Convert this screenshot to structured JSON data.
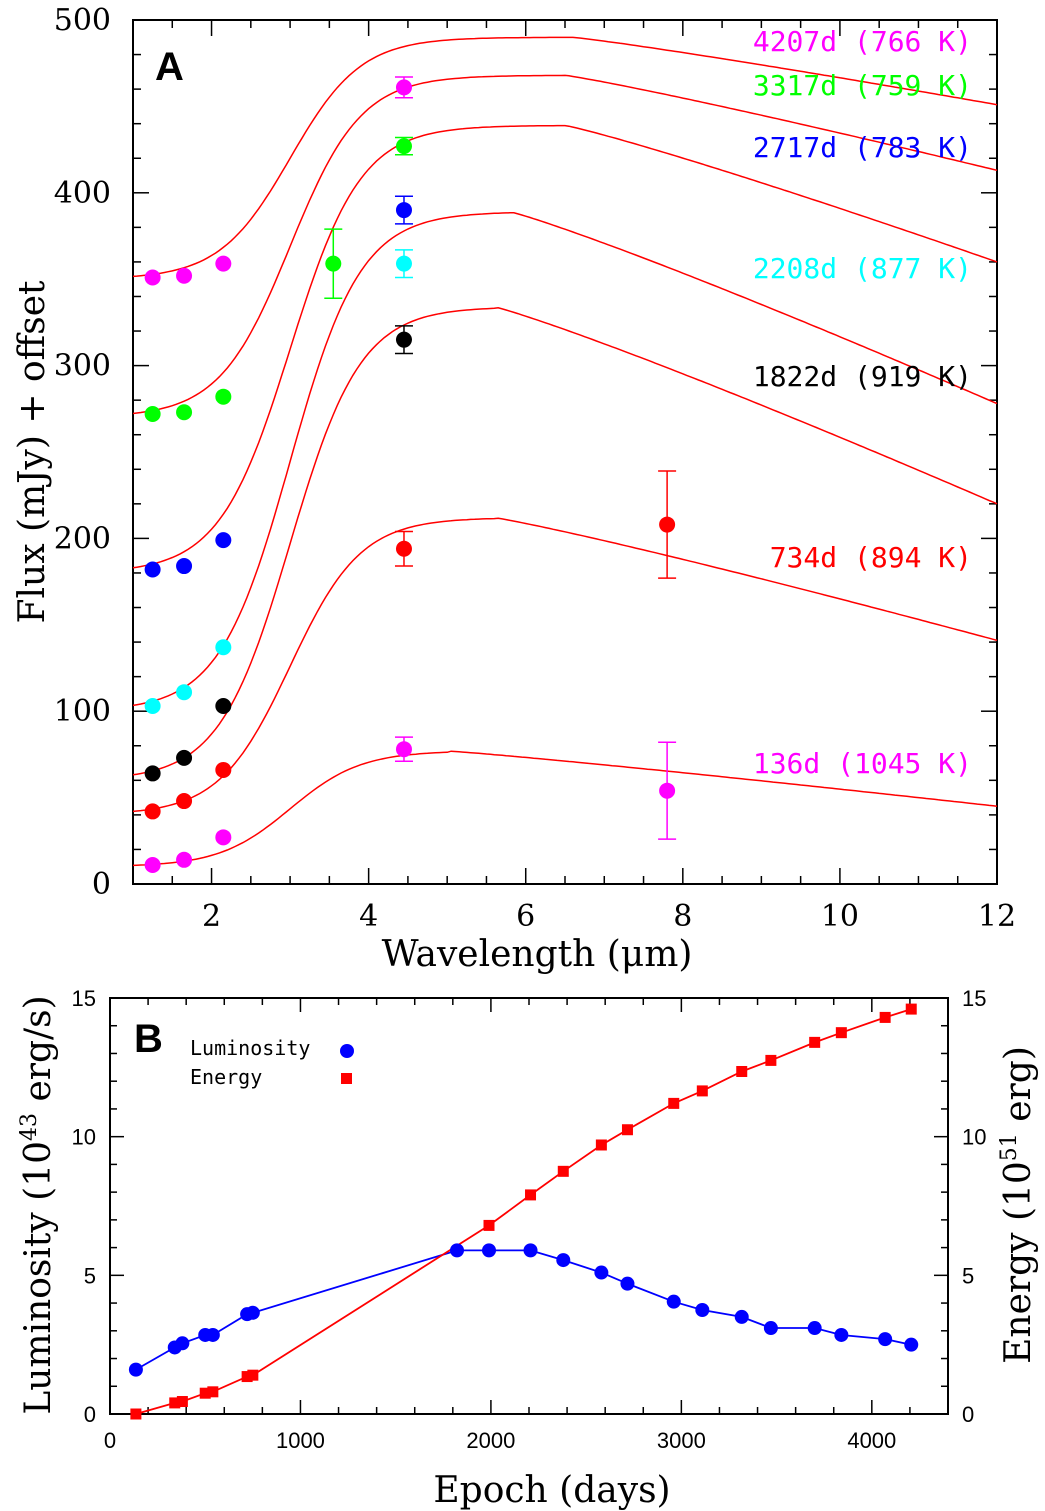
{
  "chart_data": [
    {
      "panel_label": "A",
      "type": "line",
      "xlabel": "Wavelength (μm)",
      "ylabel": "Flux (mJy) + offset",
      "xlim": [
        1,
        12
      ],
      "ylim": [
        0,
        500
      ],
      "x_ticks": [
        2,
        4,
        6,
        8,
        10,
        12
      ],
      "y_ticks": [
        0,
        100,
        200,
        300,
        400,
        500
      ],
      "colors": {
        "fit": "#ff0000",
        "axis": "#000000"
      },
      "series": [
        {
          "name": "136d (1045 K)",
          "color": "#ff00ff",
          "fit_base": 10,
          "fit_peak": 77,
          "fit_peak_x": 5.0,
          "fit_end": 45,
          "points": [
            [
              1.25,
              11
            ],
            [
              1.65,
              14
            ],
            [
              2.15,
              27
            ],
            [
              4.45,
              78
            ],
            [
              7.8,
              54
            ]
          ],
          "errors": [
            0,
            0,
            0,
            7,
            28
          ]
        },
        {
          "name": "734d (894 K)",
          "color": "#ff0000",
          "fit_base": 40,
          "fit_peak": 212,
          "fit_peak_x": 5.6,
          "fit_end": 141,
          "points": [
            [
              1.25,
              42
            ],
            [
              1.65,
              48
            ],
            [
              2.15,
              66
            ],
            [
              4.45,
              194
            ],
            [
              7.8,
              208
            ]
          ],
          "errors": [
            0,
            0,
            0,
            10,
            31
          ]
        },
        {
          "name": "1822d (919 K)",
          "color": "#000000",
          "fit_base": 60,
          "fit_peak": 334,
          "fit_peak_x": 5.6,
          "fit_end": 220,
          "points": [
            [
              1.25,
              64
            ],
            [
              1.65,
              73
            ],
            [
              2.15,
              103
            ],
            [
              4.45,
              315
            ]
          ],
          "errors": [
            0,
            0,
            0,
            8
          ]
        },
        {
          "name": "2208d (877 K)",
          "color": "#00ffff",
          "fit_base": 100,
          "fit_peak": 389,
          "fit_peak_x": 5.8,
          "fit_end": 278,
          "points": [
            [
              1.25,
              103
            ],
            [
              1.65,
              111
            ],
            [
              2.15,
              137
            ],
            [
              4.45,
              359
            ]
          ],
          "errors": [
            0,
            0,
            0,
            8
          ]
        },
        {
          "name": "2717d (783 K)",
          "color": "#0000ff",
          "fit_base": 180,
          "fit_peak": 439,
          "fit_peak_x": 6.5,
          "fit_end": 360,
          "points": [
            [
              1.25,
              182
            ],
            [
              1.65,
              184
            ],
            [
              2.15,
              199
            ],
            [
              4.45,
              390
            ]
          ],
          "errors": [
            0,
            0,
            0,
            8
          ]
        },
        {
          "name": "3317d (759 K)",
          "color": "#00ff00",
          "fit_base": 270,
          "fit_peak": 468,
          "fit_peak_x": 6.5,
          "fit_end": 413,
          "points": [
            [
              1.25,
              272
            ],
            [
              1.65,
              273
            ],
            [
              2.15,
              282
            ],
            [
              3.55,
              359
            ],
            [
              4.45,
              427
            ]
          ],
          "errors": [
            0,
            0,
            0,
            20,
            5
          ]
        },
        {
          "name": "4207d (766 K)",
          "color": "#ff00ff",
          "fit_base": 350,
          "fit_peak": 490,
          "fit_peak_x": 6.6,
          "fit_end": 451,
          "points": [
            [
              1.25,
              351
            ],
            [
              1.65,
              352
            ],
            [
              2.15,
              359
            ],
            [
              4.45,
              461
            ]
          ],
          "errors": [
            0,
            0,
            0,
            6
          ]
        }
      ]
    },
    {
      "panel_label": "B",
      "type": "line",
      "xlabel": "Epoch (days)",
      "ylabel_left": "Luminosity (10",
      "ylabel_left_sup": "43",
      "ylabel_left_tail": " erg/s)",
      "ylabel_right": "Energy (10",
      "ylabel_right_sup": "51",
      "ylabel_right_tail": " erg)",
      "xlim": [
        0,
        4400
      ],
      "ylim": [
        0,
        15
      ],
      "x_ticks": [
        0,
        1000,
        2000,
        3000,
        4000
      ],
      "y_ticks": [
        0,
        5,
        10,
        15
      ],
      "legend_position": "top-left",
      "series": [
        {
          "name": "Luminosity",
          "color": "#0000ff",
          "marker": "circle",
          "x": [
            136,
            340,
            380,
            500,
            540,
            720,
            750,
            1822,
            1990,
            2208,
            2380,
            2580,
            2717,
            2960,
            3110,
            3317,
            3470,
            3700,
            3840,
            4070,
            4207
          ],
          "y": [
            1.6,
            2.4,
            2.55,
            2.85,
            2.85,
            3.6,
            3.65,
            5.9,
            5.9,
            5.9,
            5.55,
            5.1,
            4.7,
            4.05,
            3.75,
            3.5,
            3.1,
            3.1,
            2.85,
            2.7,
            2.5
          ]
        },
        {
          "name": "Energy",
          "color": "#ff0000",
          "marker": "square",
          "x": [
            136,
            340,
            380,
            500,
            540,
            720,
            750,
            1990,
            2208,
            2380,
            2580,
            2717,
            2960,
            3110,
            3317,
            3470,
            3700,
            3840,
            4070,
            4207
          ],
          "y": [
            0.0,
            0.4,
            0.45,
            0.75,
            0.8,
            1.35,
            1.4,
            6.8,
            7.9,
            8.75,
            9.7,
            10.25,
            11.2,
            11.65,
            12.35,
            12.75,
            13.4,
            13.75,
            14.3,
            14.6
          ]
        }
      ]
    }
  ]
}
